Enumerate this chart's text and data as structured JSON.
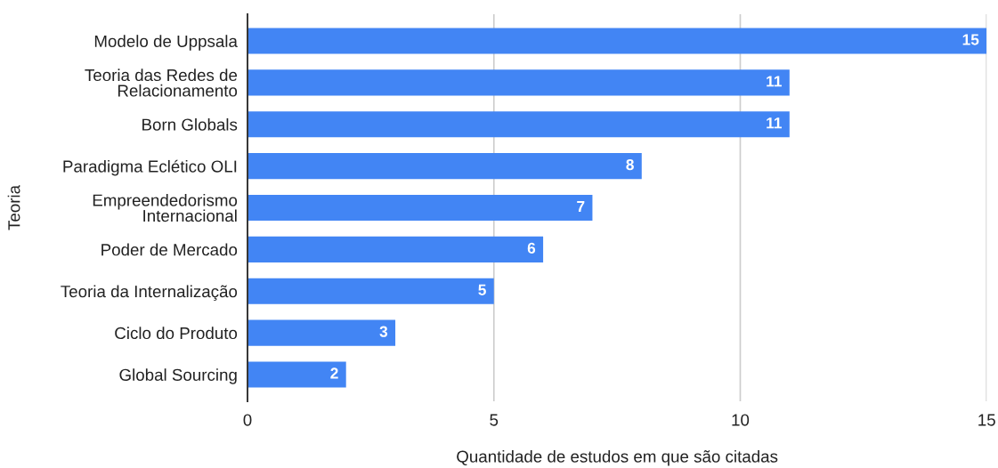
{
  "chart_data": {
    "type": "bar",
    "orientation": "horizontal",
    "categories": [
      "Modelo de Uppsala",
      "Teoria das Redes de\nRelacionamento",
      "Born Globals",
      "Paradigma Eclético OLI",
      "Empreendedorismo\nInternacional",
      "Poder de Mercado",
      "Teoria da Internalização",
      "Ciclo do Produto",
      "Global Sourcing"
    ],
    "values": [
      15,
      11,
      11,
      8,
      7,
      6,
      5,
      3,
      2
    ],
    "color": "#4285f4",
    "xlim": [
      0,
      15
    ],
    "xticks": [
      0,
      5,
      10,
      15
    ],
    "xlabel": "Quantidade de estudos em que são citadas",
    "ylabel": "Teoria",
    "grid": "x",
    "data_labels": true
  }
}
